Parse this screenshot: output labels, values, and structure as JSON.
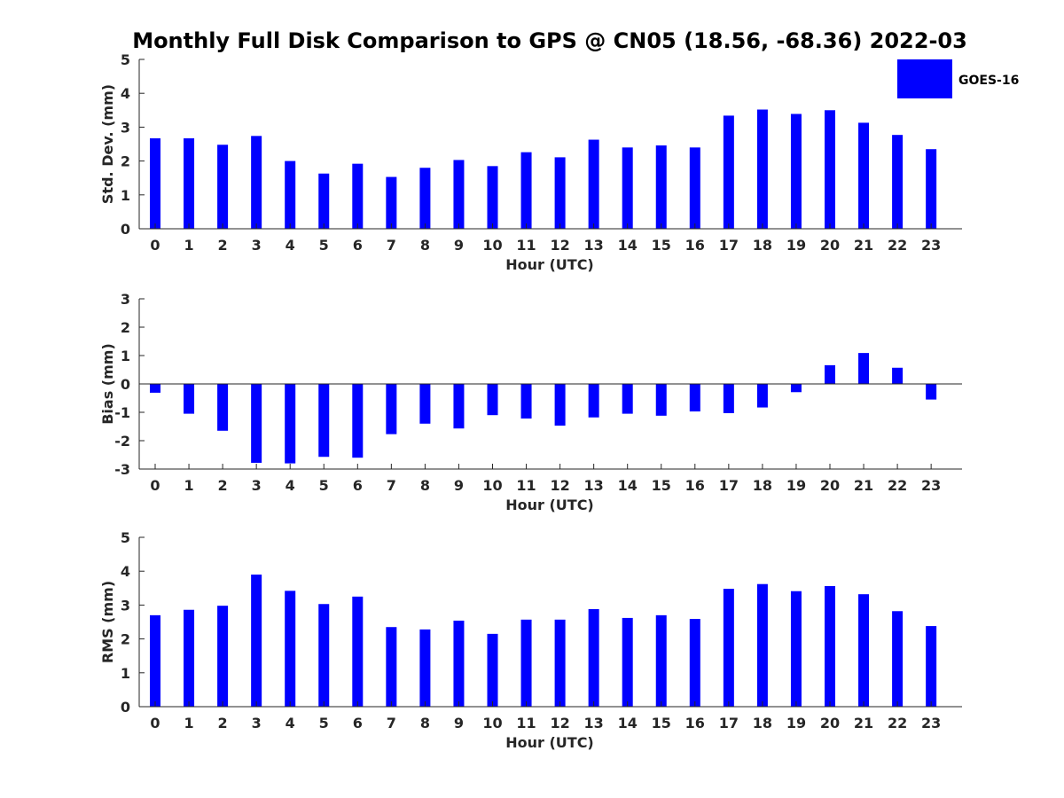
{
  "title": "Monthly Full Disk Comparison to GPS @ CN05 (18.56, -68.36) 2022-03",
  "legend": {
    "label": "GOES-16",
    "color": "#0000ff",
    "position": "top-right"
  },
  "chart_data": [
    {
      "type": "bar",
      "categories": [
        "0",
        "1",
        "2",
        "3",
        "4",
        "5",
        "6",
        "7",
        "8",
        "9",
        "10",
        "11",
        "12",
        "13",
        "14",
        "15",
        "16",
        "17",
        "18",
        "19",
        "20",
        "21",
        "22",
        "23"
      ],
      "series": [
        {
          "name": "GOES-16",
          "color": "#0000ff",
          "values": [
            2.67,
            2.67,
            2.48,
            2.74,
            2.0,
            1.63,
            1.92,
            1.53,
            1.8,
            2.03,
            1.85,
            2.26,
            2.11,
            2.63,
            2.4,
            2.46,
            2.4,
            3.34,
            3.52,
            3.39,
            3.5,
            3.13,
            2.77,
            2.35
          ]
        }
      ],
      "xlabel": "Hour (UTC)",
      "ylabel": "Std. Dev. (mm)",
      "ylim": [
        0,
        5
      ],
      "yticks": [
        0,
        1,
        2,
        3,
        4,
        5
      ],
      "grid": false
    },
    {
      "type": "bar",
      "categories": [
        "0",
        "1",
        "2",
        "3",
        "4",
        "5",
        "6",
        "7",
        "8",
        "9",
        "10",
        "11",
        "12",
        "13",
        "14",
        "15",
        "16",
        "17",
        "18",
        "19",
        "20",
        "21",
        "22",
        "23"
      ],
      "series": [
        {
          "name": "GOES-16",
          "color": "#0000ff",
          "values": [
            -0.31,
            -1.05,
            -1.65,
            -2.78,
            -2.8,
            -2.57,
            -2.6,
            -1.77,
            -1.4,
            -1.57,
            -1.1,
            -1.22,
            -1.47,
            -1.18,
            -1.05,
            -1.12,
            -0.97,
            -1.03,
            -0.83,
            -0.29,
            0.66,
            1.09,
            0.57,
            -0.55
          ]
        }
      ],
      "xlabel": "Hour (UTC)",
      "ylabel": "Bias (mm)",
      "ylim": [
        -3,
        3
      ],
      "yticks": [
        -3,
        -2,
        -1,
        0,
        1,
        2,
        3
      ],
      "grid": false
    },
    {
      "type": "bar",
      "categories": [
        "0",
        "1",
        "2",
        "3",
        "4",
        "5",
        "6",
        "7",
        "8",
        "9",
        "10",
        "11",
        "12",
        "13",
        "14",
        "15",
        "16",
        "17",
        "18",
        "19",
        "20",
        "21",
        "22",
        "23"
      ],
      "series": [
        {
          "name": "GOES-16",
          "color": "#0000ff",
          "values": [
            2.7,
            2.86,
            2.98,
            3.9,
            3.42,
            3.03,
            3.25,
            2.35,
            2.28,
            2.54,
            2.15,
            2.57,
            2.57,
            2.88,
            2.62,
            2.7,
            2.59,
            3.48,
            3.62,
            3.41,
            3.56,
            3.32,
            2.82,
            2.38
          ]
        }
      ],
      "xlabel": "Hour (UTC)",
      "ylabel": "RMS (mm)",
      "ylim": [
        0,
        5
      ],
      "yticks": [
        0,
        1,
        2,
        3,
        4,
        5
      ],
      "grid": false
    }
  ]
}
